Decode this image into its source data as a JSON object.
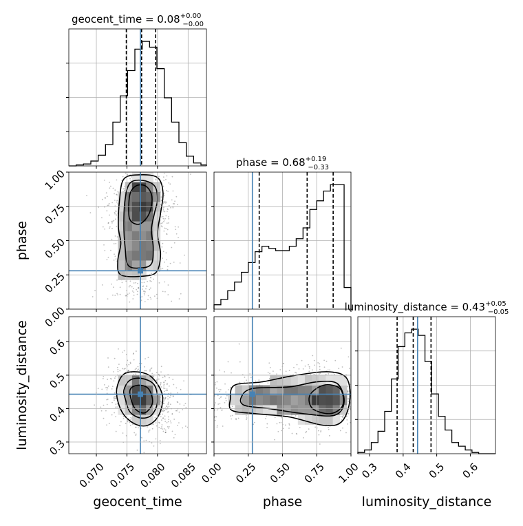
{
  "chart_data": {
    "type": "corner",
    "parameters": [
      "geocent_time",
      "phase",
      "luminosity_distance"
    ],
    "truths": [
      0.0772,
      0.28,
      0.443
    ],
    "truth_color": "#4682b4",
    "hist_color": "#000000",
    "titles": [
      {
        "param": "geocent_time",
        "text": "geocent_time = 0.08",
        "sup": "+0.00",
        "sub": "−0.00"
      },
      {
        "param": "phase",
        "text": "phase = 0.68",
        "sup": "+0.19",
        "sub": "−0.33"
      },
      {
        "param": "luminosity_distance",
        "text": "luminosity_distance = 0.43",
        "sup": "+0.05",
        "sub": "−0.05"
      }
    ],
    "axes": {
      "geocent_time": {
        "range": [
          0.0655,
          0.088
        ],
        "ticks": [
          0.07,
          0.075,
          0.08,
          0.085
        ],
        "tick_labels": [
          "0.070",
          "0.075",
          "0.080",
          "0.085"
        ],
        "label": "geocent_time"
      },
      "phase": {
        "range": [
          0.0,
          1.0
        ],
        "ticks": [
          0.0,
          0.25,
          0.5,
          0.75,
          1.0
        ],
        "tick_labels": [
          "0.00",
          "0.25",
          "0.50",
          "0.75",
          "1.00"
        ],
        "label": "phase"
      },
      "luminosity_distance": {
        "range": [
          0.265,
          0.675
        ],
        "ticks": [
          0.3,
          0.4,
          0.5,
          0.6
        ],
        "tick_labels": [
          "0.3",
          "0.4",
          "0.5",
          "0.6"
        ],
        "label": "luminosity_distance"
      }
    },
    "marginals": [
      {
        "param": "geocent_time",
        "quantiles": [
          0.0749,
          0.0774,
          0.0797
        ],
        "bins": [
          0.0655,
          0.0667,
          0.0679,
          0.0691,
          0.0703,
          0.0715,
          0.0727,
          0.0739,
          0.0751,
          0.0763,
          0.0775,
          0.0787,
          0.0799,
          0.0811,
          0.0823,
          0.0835,
          0.0847,
          0.0859,
          0.0871,
          0.0883
        ],
        "counts": [
          0,
          1,
          2,
          5,
          11,
          22,
          45,
          72,
          98,
          120,
          128,
          122,
          100,
          70,
          45,
          24,
          10,
          3,
          1
        ]
      },
      {
        "param": "phase",
        "quantiles": [
          0.33,
          0.68,
          0.87
        ],
        "bins": [
          0.0,
          0.05,
          0.1,
          0.15,
          0.2,
          0.25,
          0.3,
          0.35,
          0.4,
          0.45,
          0.5,
          0.55,
          0.6,
          0.65,
          0.7,
          0.75,
          0.8,
          0.85,
          0.9,
          0.95,
          1.0
        ],
        "counts": [
          4,
          9,
          17,
          25,
          34,
          43,
          53,
          58,
          56,
          54,
          54,
          58,
          65,
          75,
          92,
          100,
          109,
          115,
          115,
          20
        ]
      },
      {
        "param": "luminosity_distance",
        "quantiles": [
          0.382,
          0.43,
          0.483
        ],
        "bins": [
          0.265,
          0.285,
          0.305,
          0.325,
          0.345,
          0.365,
          0.385,
          0.405,
          0.425,
          0.445,
          0.465,
          0.485,
          0.505,
          0.525,
          0.545,
          0.565,
          0.585,
          0.605,
          0.625,
          0.645,
          0.665,
          0.675
        ],
        "counts": [
          1,
          3,
          9,
          18,
          34,
          60,
          86,
          97,
          100,
          95,
          74,
          48,
          30,
          19,
          9,
          6,
          3,
          1,
          0,
          0,
          0
        ]
      }
    ],
    "pairs": [
      {
        "x": "geocent_time",
        "y": "phase",
        "center": [
          0.0772,
          0.66
        ],
        "spread": [
          0.0026,
          0.26
        ],
        "contours": [
          [
            [
              0.0736,
              0.6
            ],
            [
              0.0738,
              0.8
            ],
            [
              0.0745,
              0.95
            ],
            [
              0.077,
              0.98
            ],
            [
              0.08,
              0.96
            ],
            [
              0.0809,
              0.85
            ],
            [
              0.0805,
              0.7
            ],
            [
              0.08,
              0.55
            ],
            [
              0.0805,
              0.4
            ],
            [
              0.0798,
              0.27
            ],
            [
              0.0775,
              0.24
            ],
            [
              0.074,
              0.25
            ],
            [
              0.0735,
              0.35
            ],
            [
              0.074,
              0.48
            ]
          ],
          [
            [
              0.0745,
              0.62
            ],
            [
              0.0747,
              0.8
            ],
            [
              0.0755,
              0.92
            ],
            [
              0.0775,
              0.94
            ],
            [
              0.0795,
              0.9
            ],
            [
              0.08,
              0.8
            ],
            [
              0.0795,
              0.7
            ],
            [
              0.079,
              0.58
            ],
            [
              0.0793,
              0.45
            ],
            [
              0.079,
              0.33
            ],
            [
              0.0772,
              0.3
            ],
            [
              0.0752,
              0.32
            ],
            [
              0.0747,
              0.45
            ]
          ],
          [
            [
              0.0753,
              0.7
            ],
            [
              0.0755,
              0.84
            ],
            [
              0.0765,
              0.9
            ],
            [
              0.078,
              0.9
            ],
            [
              0.079,
              0.84
            ],
            [
              0.079,
              0.75
            ],
            [
              0.0783,
              0.67
            ],
            [
              0.077,
              0.62
            ],
            [
              0.0757,
              0.64
            ]
          ]
        ]
      },
      {
        "x": "geocent_time",
        "y": "luminosity_distance",
        "center": [
          0.0776,
          0.428
        ],
        "spread": [
          0.0027,
          0.047
        ],
        "contours": [
          [
            [
              0.0733,
              0.45
            ],
            [
              0.0743,
              0.5
            ],
            [
              0.0765,
              0.51
            ],
            [
              0.079,
              0.495
            ],
            [
              0.0808,
              0.44
            ],
            [
              0.0802,
              0.38
            ],
            [
              0.0784,
              0.35
            ],
            [
              0.0762,
              0.355
            ],
            [
              0.0742,
              0.39
            ]
          ],
          [
            [
              0.0745,
              0.455
            ],
            [
              0.0755,
              0.485
            ],
            [
              0.0775,
              0.49
            ],
            [
              0.0795,
              0.47
            ],
            [
              0.08,
              0.42
            ],
            [
              0.079,
              0.38
            ],
            [
              0.0772,
              0.372
            ],
            [
              0.0755,
              0.39
            ],
            [
              0.0748,
              0.425
            ]
          ],
          [
            [
              0.0755,
              0.455
            ],
            [
              0.0768,
              0.47
            ],
            [
              0.0785,
              0.46
            ],
            [
              0.0792,
              0.42
            ],
            [
              0.0782,
              0.39
            ],
            [
              0.077,
              0.39
            ],
            [
              0.076,
              0.41
            ]
          ]
        ]
      },
      {
        "x": "phase",
        "y": "luminosity_distance",
        "center": [
          0.66,
          0.432
        ],
        "spread": [
          0.25,
          0.045
        ],
        "contours": [
          [
            [
              0.12,
              0.43
            ],
            [
              0.15,
              0.47
            ],
            [
              0.35,
              0.48
            ],
            [
              0.6,
              0.5
            ],
            [
              0.84,
              0.51
            ],
            [
              0.97,
              0.49
            ],
            [
              0.99,
              0.42
            ],
            [
              0.93,
              0.36
            ],
            [
              0.8,
              0.35
            ],
            [
              0.55,
              0.375
            ],
            [
              0.3,
              0.385
            ],
            [
              0.13,
              0.395
            ]
          ],
          [
            [
              0.2,
              0.435
            ],
            [
              0.28,
              0.46
            ],
            [
              0.55,
              0.465
            ],
            [
              0.75,
              0.48
            ],
            [
              0.9,
              0.475
            ],
            [
              0.95,
              0.42
            ],
            [
              0.88,
              0.38
            ],
            [
              0.65,
              0.385
            ],
            [
              0.4,
              0.4
            ],
            [
              0.22,
              0.41
            ]
          ],
          [
            [
              0.7,
              0.44
            ],
            [
              0.8,
              0.47
            ],
            [
              0.92,
              0.46
            ],
            [
              0.94,
              0.41
            ],
            [
              0.85,
              0.385
            ],
            [
              0.72,
              0.4
            ]
          ]
        ]
      }
    ]
  }
}
